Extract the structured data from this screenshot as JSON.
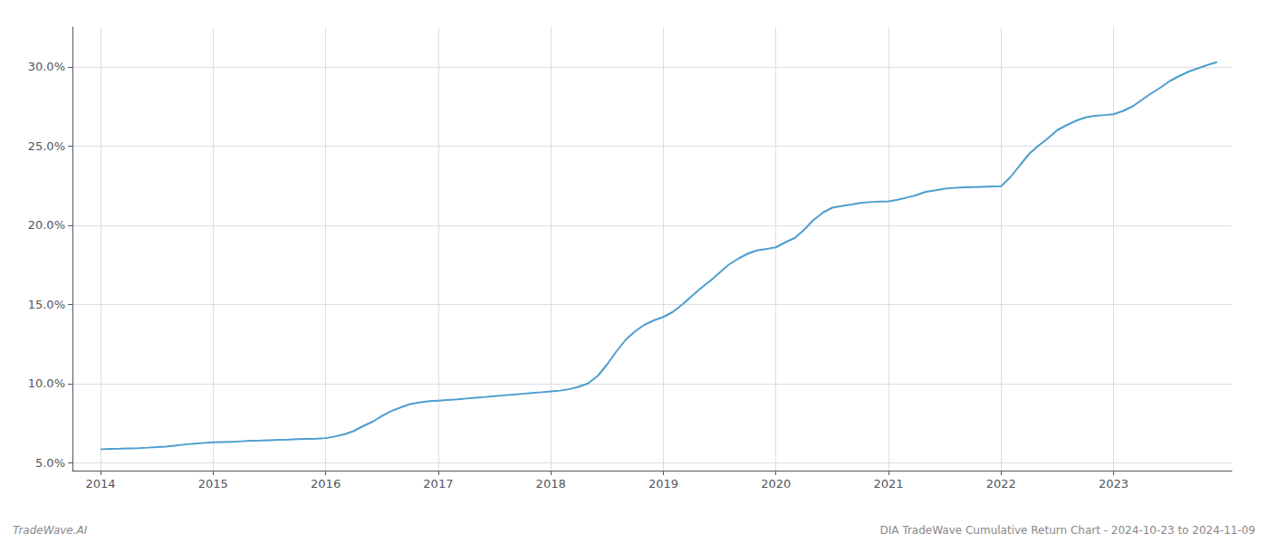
{
  "chart_data": {
    "type": "line",
    "title": "DIA TradeWave Cumulative Return Chart - 2024-10-23 to 2024-11-09",
    "annotations": [
      "TradeWave.AI"
    ],
    "color": "#4d9ecf",
    "grid": true,
    "x": [
      2014.0,
      2014.08,
      2014.17,
      2014.25,
      2014.33,
      2014.42,
      2014.5,
      2014.58,
      2014.67,
      2014.75,
      2014.83,
      2014.92,
      2015.0,
      2015.08,
      2015.17,
      2015.25,
      2015.33,
      2015.42,
      2015.5,
      2015.58,
      2015.67,
      2015.75,
      2015.83,
      2015.92,
      2016.0,
      2016.08,
      2016.17,
      2016.25,
      2016.33,
      2016.42,
      2016.5,
      2016.58,
      2016.67,
      2016.75,
      2016.83,
      2016.92,
      2017.0,
      2017.08,
      2017.17,
      2017.25,
      2017.33,
      2017.42,
      2017.5,
      2017.58,
      2017.67,
      2017.75,
      2017.83,
      2017.92,
      2018.0,
      2018.08,
      2018.17,
      2018.25,
      2018.33,
      2018.42,
      2018.5,
      2018.58,
      2018.67,
      2018.75,
      2018.83,
      2018.92,
      2019.0,
      2019.08,
      2019.17,
      2019.25,
      2019.33,
      2019.42,
      2019.5,
      2019.58,
      2019.67,
      2019.75,
      2019.83,
      2019.92,
      2020.0,
      2020.08,
      2020.17,
      2020.25,
      2020.33,
      2020.42,
      2020.5,
      2020.58,
      2020.67,
      2020.75,
      2020.83,
      2020.92,
      2021.0,
      2021.08,
      2021.17,
      2021.25,
      2021.33,
      2021.42,
      2021.5,
      2021.58,
      2021.67,
      2021.75,
      2021.83,
      2021.92,
      2022.0,
      2022.08,
      2022.17,
      2022.25,
      2022.33,
      2022.42,
      2022.5,
      2022.58,
      2022.67,
      2022.75,
      2022.83,
      2022.92,
      2023.0,
      2023.08,
      2023.17,
      2023.25,
      2023.33,
      2023.42,
      2023.5,
      2023.58,
      2023.67,
      2023.75,
      2023.83,
      2023.92
    ],
    "values": [
      5.85,
      5.87,
      5.88,
      5.9,
      5.92,
      5.95,
      5.98,
      6.02,
      6.08,
      6.15,
      6.2,
      6.25,
      6.28,
      6.3,
      6.32,
      6.35,
      6.38,
      6.4,
      6.42,
      6.44,
      6.46,
      6.48,
      6.5,
      6.52,
      6.55,
      6.65,
      6.8,
      7.0,
      7.3,
      7.6,
      7.95,
      8.25,
      8.5,
      8.7,
      8.8,
      8.88,
      8.92,
      8.96,
      9.0,
      9.05,
      9.1,
      9.15,
      9.2,
      9.25,
      9.3,
      9.35,
      9.4,
      9.45,
      9.5,
      9.55,
      9.65,
      9.8,
      10.0,
      10.5,
      11.2,
      12.0,
      12.8,
      13.3,
      13.7,
      14.0,
      14.2,
      14.5,
      15.0,
      15.5,
      16.0,
      16.5,
      17.0,
      17.5,
      17.9,
      18.2,
      18.4,
      18.5,
      18.6,
      18.9,
      19.2,
      19.7,
      20.3,
      20.8,
      21.1,
      21.2,
      21.3,
      21.4,
      21.45,
      21.48,
      21.5,
      21.6,
      21.75,
      21.9,
      22.1,
      22.2,
      22.3,
      22.35,
      22.38,
      22.4,
      22.42,
      22.44,
      22.45,
      23.0,
      23.8,
      24.5,
      25.0,
      25.5,
      26.0,
      26.3,
      26.6,
      26.8,
      26.9,
      26.95,
      27.0,
      27.2,
      27.5,
      27.9,
      28.3,
      28.7,
      29.1,
      29.4,
      29.7,
      29.9,
      30.1,
      30.3
    ],
    "xlim": [
      2013.75,
      2024.05
    ],
    "xticks": [
      2014,
      2015,
      2016,
      2017,
      2018,
      2019,
      2020,
      2021,
      2022,
      2023
    ],
    "ylim": [
      4.5,
      32.5
    ],
    "yticks": [
      {
        "value": 5.0,
        "label": "5.0%"
      },
      {
        "value": 10.0,
        "label": "10.0%"
      },
      {
        "value": 15.0,
        "label": "15.0%"
      },
      {
        "value": 20.0,
        "label": "20.0%"
      },
      {
        "value": 25.0,
        "label": "25.0%"
      },
      {
        "value": 30.0,
        "label": "30.0%"
      }
    ]
  }
}
